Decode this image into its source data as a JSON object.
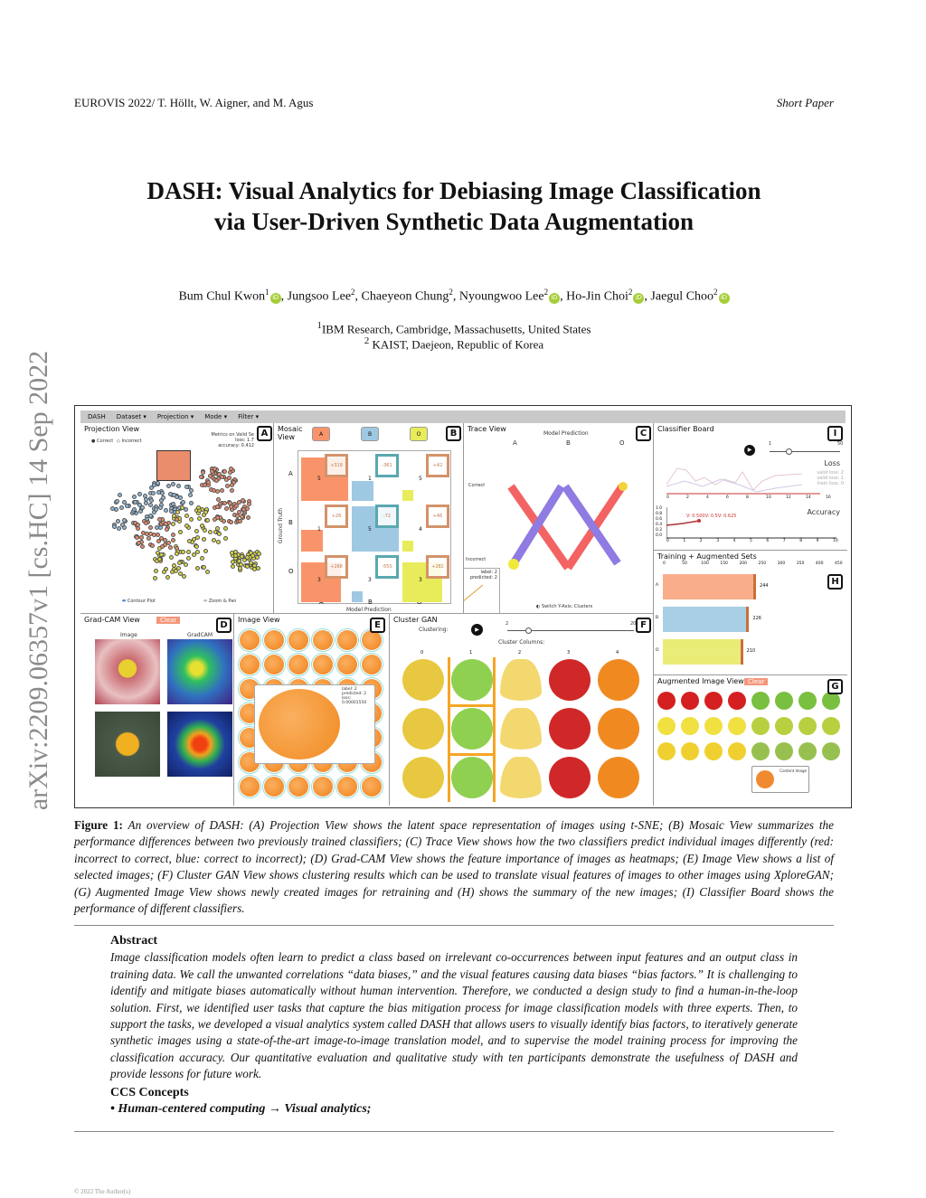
{
  "header": {
    "left": "EUROVIS 2022/ T. Höllt, W. Aigner, and M. Agus",
    "right": "Short Paper"
  },
  "title": {
    "line1": "DASH: Visual Analytics for Debiasing Image Classification",
    "line2": "via User-Driven Synthetic Data Augmentation"
  },
  "authors": [
    {
      "name": "Bum Chul Kwon",
      "sup": "1",
      "orcid": true
    },
    {
      "name": "Jungsoo Lee",
      "sup": "2",
      "orcid": false
    },
    {
      "name": "Chaeyeon Chung",
      "sup": "2",
      "orcid": false
    },
    {
      "name": "Nyoungwoo Lee",
      "sup": "2",
      "orcid": true
    },
    {
      "name": "Ho-Jin Choi",
      "sup": "2",
      "orcid": true
    },
    {
      "name": "Jaegul Choo",
      "sup": "2",
      "orcid": true
    }
  ],
  "orcid_badge": "iD",
  "affiliations": [
    {
      "sup": "1",
      "text": "IBM Research, Cambridge, Massachusetts, United States"
    },
    {
      "sup": "2",
      "text": " KAIST, Daejeon, Republic of Korea"
    }
  ],
  "arxiv": "arXiv:2209.06357v1  [cs.HC]  14 Sep 2022",
  "figure": {
    "menu": [
      "DASH",
      "Dataset ▾",
      "Projection ▾",
      "Mode ▾",
      "Filter ▾"
    ],
    "projection": {
      "title": "Projection View",
      "legend": [
        "Correct",
        "Incorrect"
      ],
      "metrics": [
        "Metrics on Valid Se",
        "loss: 1.7",
        "accuracy: 0.412"
      ],
      "toggles": [
        "Contour Plot",
        "Zoom & Pan"
      ],
      "label": "A"
    },
    "mosaic": {
      "title": "Mosaic View",
      "classes": [
        "A",
        "B",
        "O"
      ],
      "ylabel": "Ground Truth",
      "xlabel": "Model Prediction",
      "deltas": [
        "+319",
        "-361",
        "+42",
        "+26",
        "-72",
        "+46",
        "+268",
        "-550",
        "+282"
      ],
      "counts": [
        "5",
        "1",
        "5",
        "1",
        "5",
        "4",
        "3",
        "3",
        "3"
      ],
      "tooltip": [
        "label: 2",
        "predicted: 2"
      ],
      "label": "B"
    },
    "trace": {
      "title": "Trace View",
      "header": "Model Prediction",
      "classes": [
        "A",
        "B",
        "O"
      ],
      "rows": [
        "Correct",
        "Incorrect"
      ],
      "toggle": "Switch Y-Axis: Clusters",
      "label": "C"
    },
    "classifier": {
      "title": "Classifier Board",
      "slider": [
        "1",
        "50"
      ],
      "loss_title": "Loss",
      "loss_legend": [
        "valid loss: 2",
        "valid loss: 1",
        "train loss: 0"
      ],
      "loss_x": [
        "0",
        "2",
        "4",
        "6",
        "8",
        "10",
        "12",
        "14",
        "16"
      ],
      "acc_title": "Accuracy",
      "acc_y": [
        "1.0",
        "0.8",
        "0.6",
        "0.4",
        "0.2",
        "0.0"
      ],
      "acc_x": [
        "0",
        "1",
        "2",
        "3",
        "4",
        "5",
        "6",
        "7",
        "8",
        "9",
        "10"
      ],
      "acc_labels": "V: 0.500V: 0.5V: 0.625",
      "label": "I"
    },
    "training": {
      "title": "Training + Augmented Sets",
      "axis": [
        "0",
        "50",
        "100",
        "150",
        "200",
        "250",
        "300",
        "350",
        "400",
        "450"
      ],
      "bars": [
        {
          "cls": "A",
          "value": 244,
          "color": "#f9ad8a"
        },
        {
          "cls": "B",
          "value": 226,
          "color": "#a9cfe4"
        },
        {
          "cls": "O",
          "value": 210,
          "color": "#eaec78"
        }
      ],
      "max": 450,
      "label": "H"
    },
    "gradcam": {
      "title": "Grad-CAM View",
      "clear": "Clear",
      "cols": [
        "Image",
        "GradCAM"
      ],
      "label": "D"
    },
    "imageview": {
      "title": "Image View",
      "tooltip": [
        "label: 2",
        "predicted: 2",
        "loss: 0.00001550"
      ],
      "label": "E"
    },
    "clustergan": {
      "title": "Cluster GAN",
      "clustering": "Clustering:",
      "slider": [
        "2",
        "20"
      ],
      "columns_label": "Cluster Columns:",
      "columns": [
        "0",
        "1",
        "2",
        "3",
        "4"
      ],
      "label": "F"
    },
    "augmented": {
      "title": "Augmented Image View",
      "clear": "Clear",
      "content": "Content Image",
      "label": "G"
    }
  },
  "caption": {
    "label": "Figure 1:",
    "text": " An overview of DASH: (A) Projection View shows the latent space representation of images using t-SNE; (B) Mosaic View summarizes the performance differences between two previously trained classifiers; (C) Trace View shows how the two classifiers predict individual images differently (red: incorrect to correct, blue: correct to incorrect); (D) Grad-CAM View shows the feature importance of images as heatmaps; (E) Image View shows a list of selected images; (F) Cluster GAN View shows clustering results which can be used to translate visual features of images to other images using XploreGAN; (G) Augmented Image View shows newly created images for retraining and (H) shows the summary of the new images; (I) Classifier Board shows the performance of different classifiers."
  },
  "abstract": {
    "heading": "Abstract",
    "text": "Image classification models often learn to predict a class based on irrelevant co-occurrences between input features and an output class in training data. We call the unwanted correlations “data biases,” and the visual features causing data biases “bias factors.” It is challenging to identify and mitigate biases automatically without human intervention. Therefore, we conducted a design study to find a human-in-the-loop solution. First, we identified user tasks that capture the bias mitigation process for image classification models with three experts. Then, to support the tasks, we developed a visual analytics system called DASH that allows users to visually identify bias factors, to iteratively generate synthetic images using a state-of-the-art image-to-image translation model, and to supervise the model training process for improving the classification accuracy. Our quantitative evaluation and qualitative study with ten participants demonstrate the usefulness of DASH and provide lessons for future work."
  },
  "ccs": {
    "heading": "CCS Concepts",
    "bullet": "•",
    "first": "Human-centered computing",
    "arrow": " → ",
    "second": "Visual analytics;"
  },
  "footer": "© 2022 The Author(s)"
}
